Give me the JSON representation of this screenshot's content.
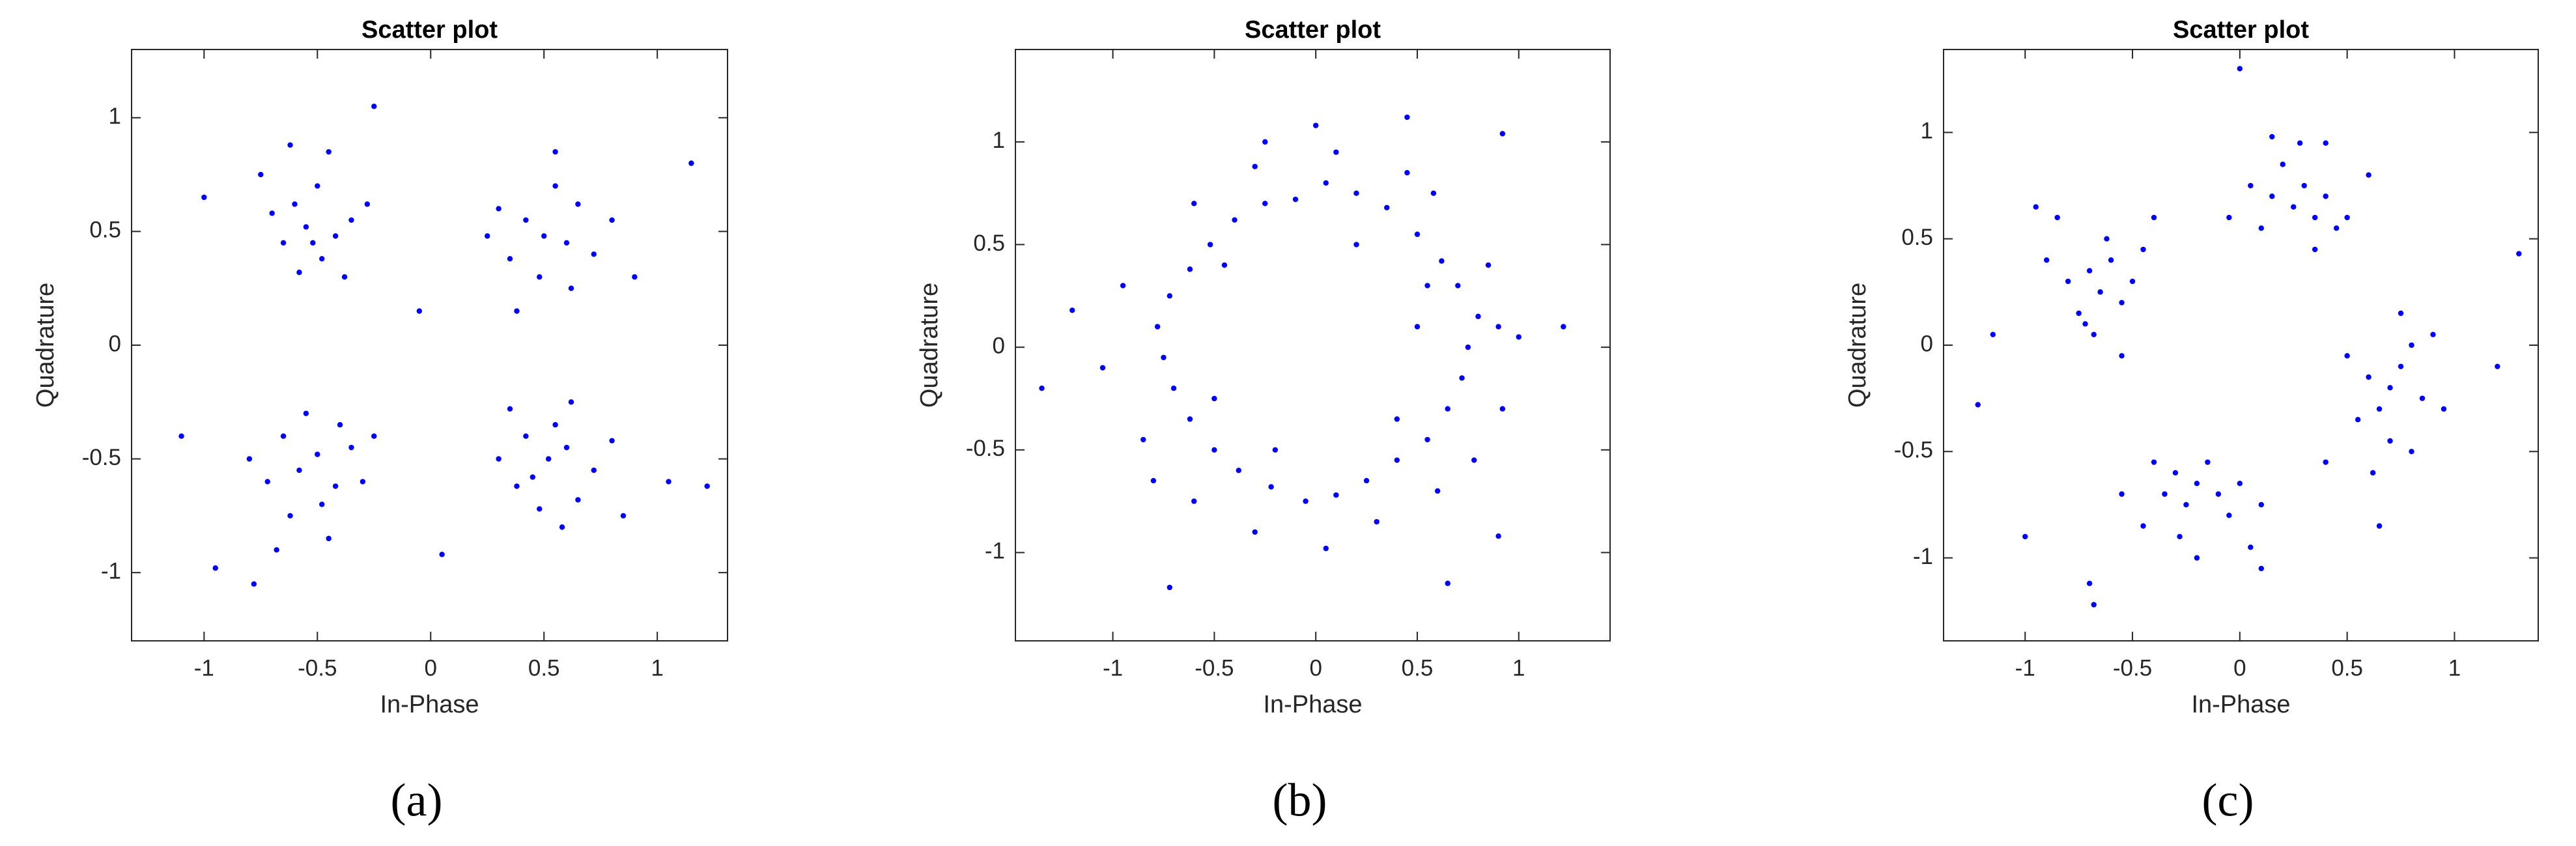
{
  "chart_data": [
    {
      "type": "scatter",
      "title": "Scatter plot",
      "x_label": "In-Phase",
      "y_label": "Quadrature",
      "caption": "(a)",
      "color": "#0000ff",
      "xlim": [
        -1.32,
        1.31
      ],
      "ylim": [
        -1.3,
        1.3
      ],
      "xticks": [
        -1,
        -0.5,
        0,
        0.5,
        1
      ],
      "yticks": [
        -1,
        -0.5,
        0,
        0.5,
        1
      ],
      "x": [
        -0.55,
        -0.42,
        -0.6,
        -0.48,
        -0.35,
        -0.65,
        -0.5,
        -0.7,
        -0.38,
        -0.58,
        -0.28,
        -0.45,
        -0.75,
        -0.52,
        -0.62,
        0.5,
        0.42,
        0.6,
        0.35,
        0.65,
        0.55,
        0.3,
        0.72,
        0.48,
        0.62,
        0.25,
        0.8,
        0.55,
        0.38,
        0.9,
        -0.5,
        -0.58,
        -0.42,
        -0.65,
        -0.35,
        -0.55,
        -0.48,
        -0.72,
        -0.3,
        -0.62,
        -0.4,
        -0.8,
        -0.45,
        -0.25,
        -0.68,
        0.52,
        0.45,
        0.6,
        0.38,
        0.55,
        0.65,
        0.42,
        0.72,
        0.3,
        0.58,
        0.48,
        0.8,
        0.35,
        0.62,
        0.85,
        -1.1,
        1.15,
        1.22,
        -0.95,
        -0.25,
        0.05,
        -0.05,
        1.05,
        -1.0,
        -0.78
      ],
      "values": [
        0.52,
        0.48,
        0.62,
        0.38,
        0.55,
        0.45,
        0.7,
        0.58,
        0.3,
        0.32,
        0.62,
        0.85,
        0.75,
        0.45,
        0.88,
        0.48,
        0.55,
        0.45,
        0.38,
        0.62,
        0.7,
        0.6,
        0.4,
        0.3,
        0.25,
        0.48,
        0.55,
        0.85,
        0.15,
        0.3,
        -0.48,
        -0.55,
        -0.62,
        -0.4,
        -0.45,
        -0.3,
        -0.7,
        -0.6,
        -0.6,
        -0.75,
        -0.35,
        -0.5,
        -0.85,
        -0.4,
        -0.9,
        -0.5,
        -0.58,
        -0.45,
        -0.62,
        -0.35,
        -0.68,
        -0.4,
        -0.55,
        -0.5,
        -0.8,
        -0.72,
        -0.42,
        -0.28,
        -0.25,
        -0.75,
        -0.4,
        0.8,
        -0.62,
        -0.98,
        1.05,
        -0.92,
        0.15,
        -0.6,
        0.65,
        -1.05
      ]
    },
    {
      "type": "scatter",
      "title": "Scatter plot",
      "x_label": "In-Phase",
      "y_label": "Quadrature",
      "caption": "(b)",
      "color": "#0000ff",
      "xlim": [
        -1.48,
        1.45
      ],
      "ylim": [
        -1.43,
        1.45
      ],
      "xticks": [
        -1,
        -0.5,
        0,
        0.5,
        1
      ],
      "yticks": [
        -1,
        -0.5,
        0,
        0.5,
        1
      ],
      "x": [
        0.75,
        0.8,
        0.7,
        0.62,
        0.5,
        0.35,
        0.2,
        0.05,
        -0.1,
        -0.25,
        -0.4,
        -0.52,
        -0.62,
        -0.72,
        -0.78,
        -0.75,
        -0.7,
        -0.62,
        -0.5,
        -0.38,
        -0.22,
        -0.05,
        0.1,
        0.25,
        0.4,
        0.55,
        0.65,
        0.72,
        0.9,
        0.55,
        0.85,
        0.45,
        0.1,
        -0.3,
        -0.6,
        -0.95,
        -1.05,
        -0.85,
        -0.6,
        -0.3,
        0.05,
        0.3,
        0.6,
        0.92,
        1.0,
        -0.45,
        0.4,
        -0.5,
        0.2,
        -0.2,
        0.5,
        -1.35,
        1.22,
        0.45,
        -0.72,
        0.65,
        0.92,
        -0.25,
        0.0,
        -1.2,
        0.9,
        0.58,
        -0.8,
        0.78
      ],
      "values": [
        0,
        0.15,
        0.3,
        0.42,
        0.55,
        0.68,
        0.75,
        0.8,
        0.72,
        0.7,
        0.62,
        0.5,
        0.38,
        0.25,
        0.1,
        -0.05,
        -0.2,
        -0.35,
        -0.5,
        -0.6,
        -0.68,
        -0.75,
        -0.72,
        -0.65,
        -0.55,
        -0.45,
        -0.3,
        -0.15,
        0.1,
        0.3,
        0.4,
        0.85,
        0.95,
        0.88,
        0.7,
        0.3,
        -0.1,
        -0.45,
        -0.75,
        -0.9,
        -0.98,
        -0.85,
        -0.7,
        -0.3,
        0.05,
        0.4,
        -0.35,
        -0.25,
        0.5,
        -0.5,
        0.1,
        -0.2,
        0.1,
        1.12,
        -1.17,
        -1.15,
        1.04,
        1.0,
        1.08,
        0.18,
        -0.92,
        0.75,
        -0.65,
        -0.55
      ]
    },
    {
      "type": "scatter",
      "title": "Scatter plot",
      "x_label": "In-Phase",
      "y_label": "Quadrature",
      "caption": "(c)",
      "color": "#0000ff",
      "xlim": [
        -1.38,
        1.39
      ],
      "ylim": [
        -1.39,
        1.39
      ],
      "xticks": [
        -1,
        -0.5,
        0,
        0.5,
        1
      ],
      "yticks": [
        -1,
        -0.5,
        0,
        0.5,
        1
      ],
      "x": [
        -0.65,
        -0.7,
        -0.55,
        -0.75,
        -0.6,
        -0.68,
        -0.5,
        -0.8,
        -0.62,
        -0.72,
        -0.45,
        -0.9,
        -0.55,
        -0.85,
        -0.4,
        0.25,
        0.15,
        0.35,
        0.3,
        0.1,
        0.45,
        0.2,
        0.4,
        0.05,
        0.5,
        0.28,
        -0.05,
        0.6,
        0.35,
        0.15,
        0.7,
        0.75,
        0.65,
        0.8,
        0.6,
        0.85,
        0.7,
        0.55,
        0.9,
        0.75,
        0.5,
        0.95,
        0.62,
        0.8,
        0.4,
        -0.2,
        -0.3,
        -0.1,
        -0.25,
        -0.15,
        -0.35,
        0.0,
        -0.05,
        -0.4,
        -0.28,
        0.1,
        -0.45,
        -0.2,
        0.05,
        -0.55,
        -0.7,
        -0.68,
        0.0,
        1.3,
        -1.22,
        -1.0,
        0.1,
        1.2,
        -0.95,
        0.4,
        -1.15,
        0.65
      ],
      "values": [
        0.25,
        0.35,
        0.2,
        0.15,
        0.4,
        0.05,
        0.3,
        0.3,
        0.5,
        0.1,
        0.45,
        0.4,
        -0.05,
        0.6,
        0.6,
        0.65,
        0.7,
        0.6,
        0.75,
        0.55,
        0.55,
        0.85,
        0.7,
        0.75,
        0.6,
        0.95,
        0.6,
        0.8,
        0.45,
        0.98,
        -0.2,
        -0.1,
        -0.3,
        0.0,
        -0.15,
        -0.25,
        -0.45,
        -0.35,
        0.05,
        0.15,
        -0.05,
        -0.3,
        -0.6,
        -0.5,
        -0.55,
        -0.65,
        -0.6,
        -0.7,
        -0.75,
        -0.55,
        -0.7,
        -0.65,
        -0.8,
        -0.55,
        -0.9,
        -0.75,
        -0.85,
        -1.0,
        -0.95,
        -0.7,
        -1.12,
        -1.22,
        1.3,
        0.43,
        -0.28,
        -0.9,
        -1.05,
        -0.1,
        0.65,
        0.95,
        0.05,
        -0.85
      ]
    }
  ]
}
